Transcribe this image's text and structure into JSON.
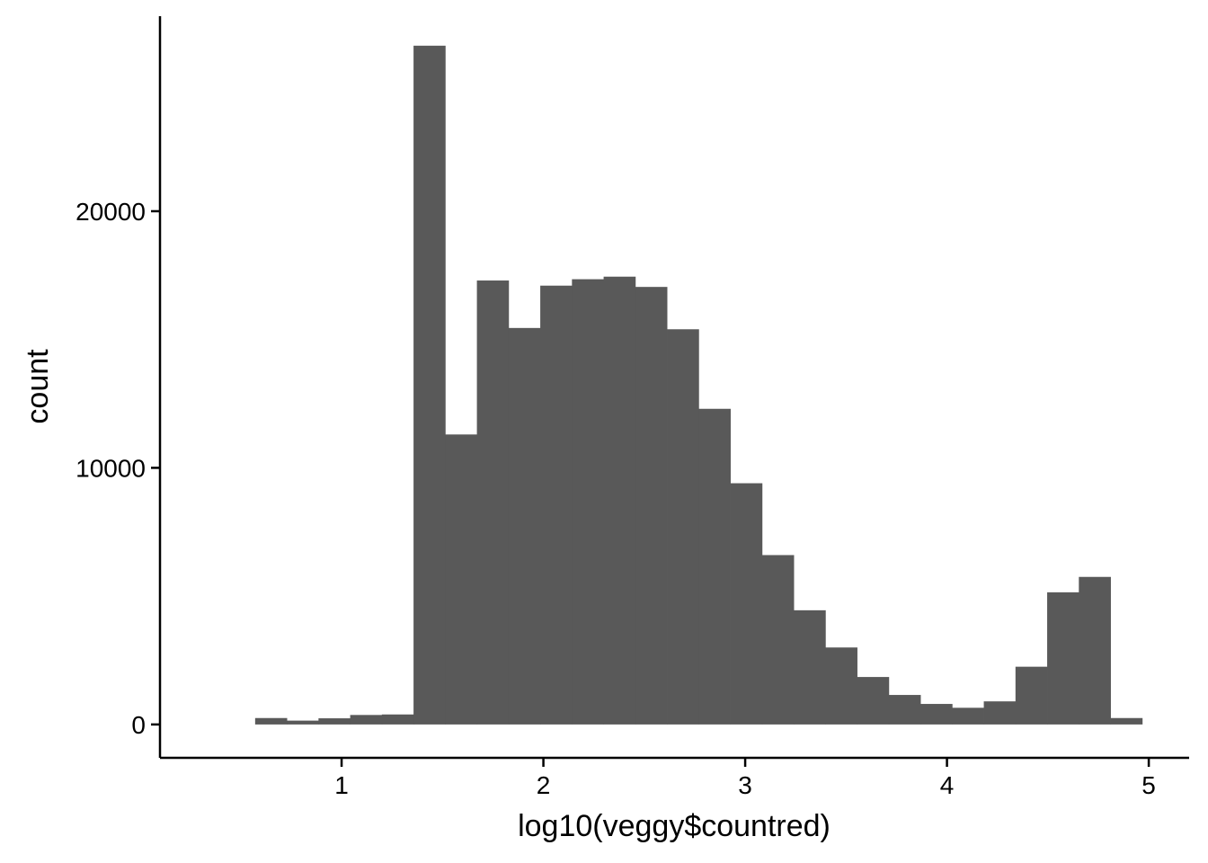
{
  "chart_data": {
    "type": "bar",
    "subtype": "histogram",
    "title": "",
    "xlabel": "log10(veggy$countred)",
    "ylabel": "count",
    "xlim": [
      0.1,
      5.2
    ],
    "ylim": [
      -1300,
      27600
    ],
    "bin_width": 0.157,
    "bin_centers": [
      0.65,
      0.807,
      0.964,
      1.121,
      1.278,
      1.435,
      1.592,
      1.749,
      1.906,
      2.063,
      2.22,
      2.377,
      2.534,
      2.691,
      2.848,
      3.005,
      3.162,
      3.319,
      3.476,
      3.633,
      3.79,
      3.947,
      4.104,
      4.261,
      4.418,
      4.575,
      4.732,
      4.889
    ],
    "values": [
      250,
      150,
      240,
      370,
      390,
      26450,
      11300,
      17300,
      15450,
      17100,
      17350,
      17450,
      17050,
      15400,
      12300,
      9400,
      6600,
      4450,
      3000,
      1850,
      1150,
      800,
      650,
      900,
      2250,
      5150,
      5750,
      250
    ],
    "x_ticks": [
      1,
      2,
      3,
      4,
      5
    ],
    "x_tick_labels": [
      "1",
      "2",
      "3",
      "4",
      "5"
    ],
    "y_ticks": [
      0,
      10000,
      20000
    ],
    "y_tick_labels": [
      "0",
      "10000",
      "20000"
    ],
    "bar_color": "#595959",
    "grid": false,
    "legend": "none"
  }
}
